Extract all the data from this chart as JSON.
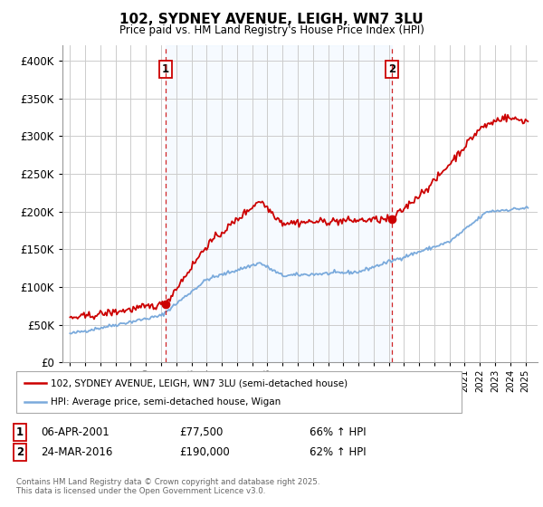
{
  "title": "102, SYDNEY AVENUE, LEIGH, WN7 3LU",
  "subtitle": "Price paid vs. HM Land Registry's House Price Index (HPI)",
  "legend_line1": "102, SYDNEY AVENUE, LEIGH, WN7 3LU (semi-detached house)",
  "legend_line2": "HPI: Average price, semi-detached house, Wigan",
  "footer": "Contains HM Land Registry data © Crown copyright and database right 2025.\nThis data is licensed under the Open Government Licence v3.0.",
  "sale1_date": "06-APR-2001",
  "sale1_price": "£77,500",
  "sale1_hpi": "66% ↑ HPI",
  "sale2_date": "24-MAR-2016",
  "sale2_price": "£190,000",
  "sale2_hpi": "62% ↑ HPI",
  "sale1_x": 2001.27,
  "sale2_x": 2016.23,
  "sale1_price_val": 77500,
  "sale2_price_val": 190000,
  "hpi_color": "#7aaadc",
  "house_color": "#cc0000",
  "dashed_color": "#cc0000",
  "shade_color": "#ddeeff",
  "background_color": "#ffffff",
  "grid_color": "#cccccc",
  "ylim": [
    0,
    420000
  ],
  "xlim": [
    1994.5,
    2025.8
  ]
}
